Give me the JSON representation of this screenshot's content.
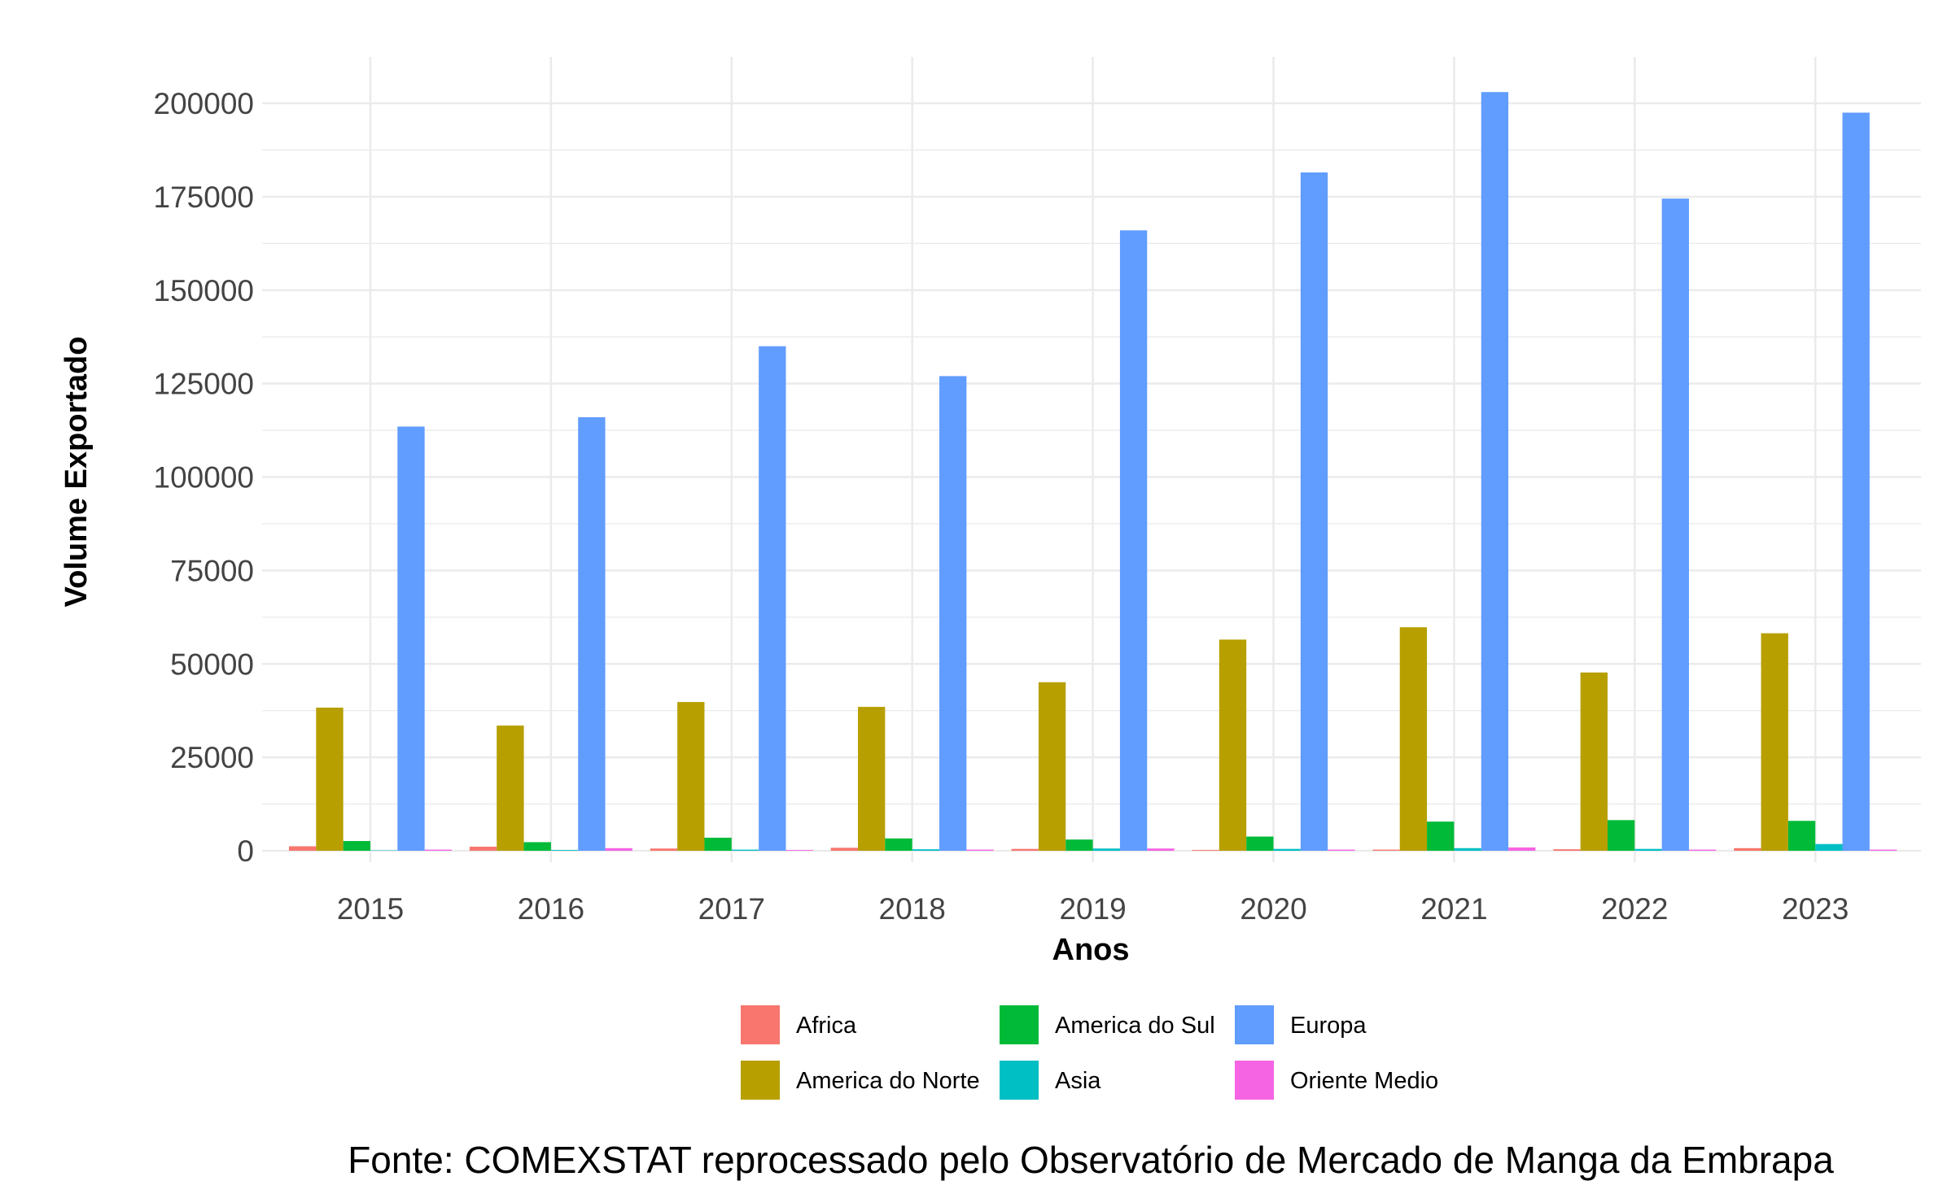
{
  "chart_data": {
    "type": "bar",
    "title": "",
    "xlabel": "Anos",
    "ylabel": "Volume Exportado",
    "caption": "Fonte: COMEXSTAT reprocessado pelo Observatório de Mercado de Manga da Embrapa",
    "categories": [
      "2015",
      "2016",
      "2017",
      "2018",
      "2019",
      "2020",
      "2021",
      "2022",
      "2023"
    ],
    "ylim": [
      0,
      212000
    ],
    "yticks": [
      0,
      25000,
      50000,
      75000,
      100000,
      125000,
      150000,
      175000,
      200000
    ],
    "ytick_labels": [
      "0",
      "25000",
      "50000",
      "75000",
      "100000",
      "125000",
      "150000",
      "175000",
      "200000"
    ],
    "grid": true,
    "legend_position": "bottom",
    "series": [
      {
        "name": "Africa",
        "color": "#F8766D",
        "values": [
          1200,
          1100,
          600,
          800,
          500,
          200,
          300,
          400,
          700
        ]
      },
      {
        "name": "America do Norte",
        "color": "#B79F00",
        "values": [
          38300,
          33500,
          39800,
          38500,
          45100,
          56500,
          59800,
          47700,
          58200
        ]
      },
      {
        "name": "America do Sul",
        "color": "#00BA38",
        "values": [
          2600,
          2300,
          3500,
          3300,
          3000,
          3800,
          7800,
          8200,
          8000
        ]
      },
      {
        "name": "Asia",
        "color": "#00BFC4",
        "values": [
          100,
          200,
          300,
          400,
          600,
          500,
          700,
          500,
          1800
        ]
      },
      {
        "name": "Europa",
        "color": "#619CFF",
        "values": [
          113500,
          116000,
          135000,
          127000,
          166000,
          181500,
          203000,
          174500,
          197500
        ]
      },
      {
        "name": "Oriente Medio",
        "color": "#F564E3",
        "values": [
          300,
          700,
          200,
          300,
          600,
          300,
          900,
          300,
          300
        ]
      }
    ]
  }
}
